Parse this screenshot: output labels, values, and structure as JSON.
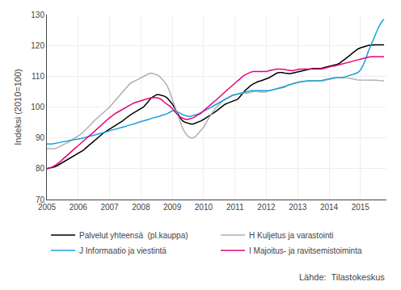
{
  "chart_data": {
    "type": "line",
    "ylabel": "Indeksi (2010=100)",
    "annotation": "Lähde:  Tilastokeskus",
    "ylim": [
      70,
      130
    ],
    "yticks": [
      70,
      80,
      90,
      100,
      110,
      120,
      130
    ],
    "xlim": [
      2005.0,
      2015.83
    ],
    "xticks": [
      2005,
      2006,
      2007,
      2008,
      2009,
      2010,
      2011,
      2012,
      2013,
      2014,
      2015
    ],
    "grid": true,
    "legend": "bottom",
    "x": [
      2005.0,
      2005.083,
      2005.167,
      2005.25,
      2005.333,
      2005.417,
      2005.5,
      2005.583,
      2005.667,
      2005.75,
      2005.833,
      2005.917,
      2006.0,
      2006.083,
      2006.167,
      2006.25,
      2006.333,
      2006.417,
      2006.5,
      2006.583,
      2006.667,
      2006.75,
      2006.833,
      2006.917,
      2007.0,
      2007.083,
      2007.167,
      2007.25,
      2007.333,
      2007.417,
      2007.5,
      2007.583,
      2007.667,
      2007.75,
      2007.833,
      2007.917,
      2008.0,
      2008.083,
      2008.167,
      2008.25,
      2008.333,
      2008.417,
      2008.5,
      2008.583,
      2008.667,
      2008.75,
      2008.833,
      2008.917,
      2009.0,
      2009.083,
      2009.167,
      2009.25,
      2009.333,
      2009.417,
      2009.5,
      2009.583,
      2009.667,
      2009.75,
      2009.833,
      2009.917,
      2010.0,
      2010.083,
      2010.167,
      2010.25,
      2010.333,
      2010.417,
      2010.5,
      2010.583,
      2010.667,
      2010.75,
      2010.833,
      2010.917,
      2011.0,
      2011.083,
      2011.167,
      2011.25,
      2011.333,
      2011.417,
      2011.5,
      2011.583,
      2011.667,
      2011.75,
      2011.833,
      2011.917,
      2012.0,
      2012.083,
      2012.167,
      2012.25,
      2012.333,
      2012.417,
      2012.5,
      2012.583,
      2012.667,
      2012.75,
      2012.833,
      2012.917,
      2013.0,
      2013.083,
      2013.167,
      2013.25,
      2013.333,
      2013.417,
      2013.5,
      2013.583,
      2013.667,
      2013.75,
      2013.833,
      2013.917,
      2014.0,
      2014.083,
      2014.167,
      2014.25,
      2014.333,
      2014.417,
      2014.5,
      2014.583,
      2014.667,
      2014.75,
      2014.833,
      2014.917,
      2015.0,
      2015.083,
      2015.167,
      2015.25,
      2015.333,
      2015.417,
      2015.5,
      2015.583,
      2015.667,
      2015.75
    ],
    "series": [
      {
        "name": "Palvelut yhteensä  (pl.kauppa)",
        "color": "#000000",
        "values": [
          80.0,
          80.2,
          80.4,
          80.6,
          81.0,
          81.5,
          82.0,
          82.5,
          83.0,
          83.5,
          84.0,
          84.5,
          85.0,
          85.5,
          86.0,
          86.8,
          87.5,
          88.3,
          89.0,
          89.8,
          90.5,
          91.2,
          91.8,
          92.3,
          92.8,
          93.3,
          93.8,
          94.3,
          94.8,
          95.5,
          96.2,
          96.9,
          97.5,
          98.0,
          98.5,
          99.0,
          99.5,
          100.0,
          101.0,
          102.0,
          103.0,
          103.5,
          104.0,
          104.0,
          103.8,
          103.5,
          103.0,
          102.0,
          101.0,
          99.5,
          98.0,
          96.5,
          95.5,
          95.0,
          94.8,
          94.5,
          94.5,
          94.8,
          95.2,
          95.5,
          96.0,
          96.5,
          97.0,
          97.5,
          98.2,
          98.8,
          99.5,
          100.2,
          100.8,
          101.2,
          101.5,
          101.8,
          102.0,
          102.5,
          103.5,
          104.5,
          105.5,
          106.2,
          107.0,
          107.5,
          108.0,
          108.3,
          108.5,
          108.8,
          109.0,
          109.5,
          110.0,
          110.5,
          111.0,
          111.2,
          111.2,
          111.0,
          110.8,
          110.8,
          111.0,
          111.2,
          111.5,
          111.8,
          112.0,
          112.2,
          112.3,
          112.4,
          112.5,
          112.5,
          112.5,
          112.5,
          112.8,
          113.0,
          113.2,
          113.4,
          113.6,
          113.8,
          114.2,
          114.8,
          115.5,
          116.0,
          116.8,
          117.5,
          118.2,
          118.8,
          119.2,
          119.5,
          119.8,
          120.0,
          120.1,
          120.2,
          120.2,
          120.2,
          120.2,
          120.2
        ]
      },
      {
        "name": "H Kuljetus ja varastointi",
        "color": "#b0b0b0",
        "values": [
          86.5,
          86.5,
          86.5,
          86.5,
          86.8,
          87.2,
          87.5,
          88.0,
          88.5,
          89.0,
          89.5,
          90.0,
          90.5,
          91.2,
          92.0,
          92.8,
          93.5,
          94.5,
          95.5,
          96.2,
          97.0,
          97.8,
          98.5,
          99.2,
          100.0,
          101.0,
          102.0,
          103.0,
          104.0,
          105.0,
          106.0,
          107.0,
          107.8,
          108.2,
          108.5,
          109.0,
          109.5,
          110.0,
          110.5,
          110.8,
          111.0,
          110.8,
          110.5,
          110.0,
          109.2,
          108.2,
          107.0,
          105.0,
          102.5,
          100.0,
          97.5,
          95.0,
          93.0,
          91.5,
          90.5,
          90.0,
          90.0,
          90.5,
          91.5,
          92.5,
          93.5,
          95.0,
          96.5,
          97.8,
          99.0,
          100.0,
          101.0,
          101.8,
          102.5,
          103.0,
          103.5,
          103.8,
          104.0,
          104.2,
          104.3,
          104.5,
          104.5,
          104.5,
          104.8,
          105.0,
          105.2,
          105.0,
          104.8,
          104.8,
          105.0,
          105.3,
          105.5,
          105.8,
          106.0,
          106.3,
          106.5,
          106.8,
          107.0,
          107.2,
          107.5,
          107.8,
          108.0,
          108.2,
          108.3,
          108.4,
          108.5,
          108.5,
          108.5,
          108.5,
          108.5,
          108.5,
          108.5,
          108.8,
          109.0,
          109.2,
          109.3,
          109.5,
          109.5,
          109.5,
          109.5,
          109.5,
          109.3,
          109.2,
          109.0,
          108.8,
          108.8,
          108.8,
          108.8,
          108.8,
          108.8,
          108.8,
          108.7,
          108.6,
          108.5,
          108.5
        ]
      },
      {
        "name": "J Informaatio ja viestintä",
        "color": "#1aa0d8",
        "values": [
          88.0,
          88.0,
          88.0,
          88.2,
          88.3,
          88.5,
          88.7,
          88.8,
          89.0,
          89.2,
          89.4,
          89.5,
          89.6,
          89.8,
          90.0,
          90.2,
          90.4,
          90.6,
          90.8,
          91.0,
          91.2,
          91.5,
          91.8,
          92.0,
          92.3,
          92.5,
          92.8,
          93.0,
          93.2,
          93.5,
          93.7,
          94.0,
          94.2,
          94.5,
          94.7,
          95.0,
          95.2,
          95.5,
          95.8,
          96.0,
          96.3,
          96.5,
          96.8,
          97.0,
          97.3,
          97.5,
          97.8,
          98.3,
          98.8,
          98.8,
          98.5,
          98.0,
          97.5,
          97.2,
          97.0,
          97.0,
          97.2,
          97.5,
          97.8,
          98.2,
          98.5,
          99.0,
          99.5,
          100.0,
          100.5,
          101.0,
          101.5,
          102.0,
          102.5,
          103.0,
          103.5,
          103.8,
          104.0,
          104.2,
          104.5,
          104.8,
          105.0,
          105.2,
          105.3,
          105.3,
          105.3,
          105.3,
          105.2,
          105.2,
          105.2,
          105.3,
          105.5,
          105.7,
          105.8,
          106.0,
          106.2,
          106.5,
          107.0,
          107.3,
          107.5,
          107.8,
          108.0,
          108.2,
          108.3,
          108.5,
          108.5,
          108.5,
          108.5,
          108.5,
          108.5,
          108.5,
          108.8,
          109.0,
          109.2,
          109.3,
          109.5,
          109.5,
          109.5,
          109.5,
          109.8,
          110.0,
          110.2,
          110.5,
          110.8,
          111.2,
          112.0,
          113.5,
          115.5,
          118.0,
          120.0,
          122.0,
          124.0,
          126.0,
          127.5,
          128.5
        ]
      },
      {
        "name": "I Majoitus- ja ravitsemistoiminta",
        "color": "#e8007a",
        "values": [
          80.0,
          80.2,
          80.5,
          81.0,
          81.5,
          82.2,
          83.0,
          83.8,
          84.5,
          85.2,
          86.0,
          86.8,
          87.5,
          88.3,
          89.0,
          89.8,
          90.5,
          91.2,
          92.0,
          92.8,
          93.5,
          94.2,
          95.0,
          95.8,
          96.5,
          97.2,
          97.8,
          98.3,
          98.8,
          99.3,
          99.8,
          100.3,
          100.8,
          101.2,
          101.5,
          101.8,
          102.0,
          102.3,
          102.5,
          102.8,
          103.0,
          103.0,
          103.0,
          102.8,
          102.3,
          101.5,
          101.0,
          100.3,
          99.5,
          98.5,
          97.5,
          96.8,
          96.3,
          96.0,
          96.0,
          96.2,
          96.5,
          97.0,
          97.5,
          98.0,
          98.8,
          99.5,
          100.2,
          101.0,
          101.8,
          102.5,
          103.2,
          104.0,
          104.8,
          105.5,
          106.2,
          107.0,
          107.8,
          108.5,
          109.2,
          110.0,
          110.5,
          111.0,
          111.3,
          111.5,
          111.5,
          111.5,
          111.5,
          111.5,
          111.5,
          111.8,
          112.0,
          112.2,
          112.3,
          112.3,
          112.3,
          112.2,
          112.0,
          111.8,
          111.8,
          112.0,
          112.2,
          112.3,
          112.3,
          112.3,
          112.3,
          112.3,
          112.3,
          112.3,
          112.3,
          112.3,
          112.5,
          112.8,
          113.0,
          113.2,
          113.3,
          113.5,
          113.8,
          114.0,
          114.2,
          114.3,
          114.5,
          114.8,
          115.0,
          115.3,
          115.5,
          115.8,
          116.0,
          116.2,
          116.3,
          116.3,
          116.3,
          116.3,
          116.3,
          116.3
        ]
      }
    ]
  }
}
